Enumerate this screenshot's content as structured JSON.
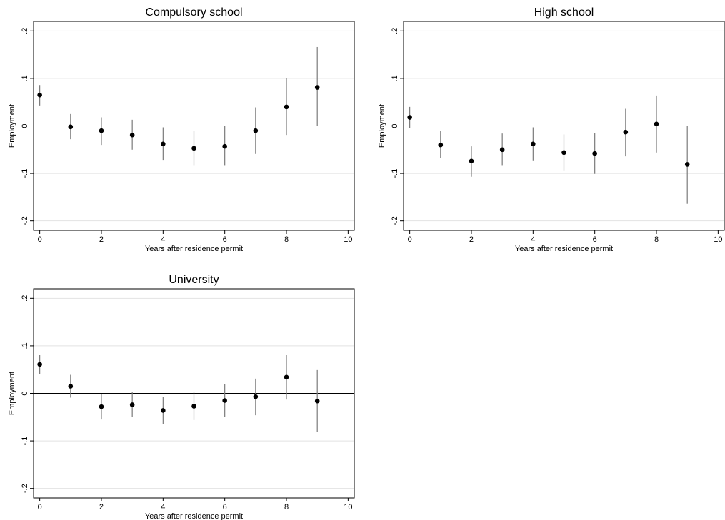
{
  "chart_data": [
    {
      "type": "errorbar",
      "title": "Compulsory school",
      "x_label": "Years after residence permit",
      "y_label": "Employment",
      "x": [
        0,
        1,
        2,
        3,
        4,
        5,
        6,
        7,
        8,
        9
      ],
      "values": [
        0.065,
        -0.002,
        -0.01,
        -0.019,
        -0.038,
        -0.047,
        -0.043,
        -0.01,
        0.04,
        0.081
      ],
      "lower": [
        0.043,
        -0.028,
        -0.04,
        -0.05,
        -0.073,
        -0.084,
        -0.084,
        -0.059,
        -0.019,
        0.0
      ],
      "upper": [
        0.086,
        0.025,
        0.018,
        0.013,
        -0.003,
        -0.01,
        0,
        0.039,
        0.101,
        0.166
      ],
      "xlim": [
        -0.2,
        10.2
      ],
      "ylim": [
        -0.22,
        0.22
      ],
      "xticks": [
        0,
        2,
        4,
        6,
        8,
        10
      ],
      "yticks": [
        {
          "value": -0.2,
          "label": "-.2"
        },
        {
          "value": -0.1,
          "label": "-.1"
        },
        0,
        {
          "value": 0.1,
          "label": ".1"
        },
        {
          "value": 0.2,
          "label": ".2"
        }
      ],
      "grid": true,
      "color": "#000000"
    },
    {
      "type": "errorbar",
      "title": "High school",
      "x_label": "Years after residence permit",
      "y_label": "Employment",
      "x": [
        0,
        1,
        2,
        3,
        4,
        5,
        6,
        7,
        8,
        9
      ],
      "values": [
        0.018,
        -0.04,
        -0.074,
        -0.05,
        -0.038,
        -0.056,
        -0.058,
        -0.013,
        0.004,
        -0.081
      ],
      "lower": [
        -0.004,
        -0.068,
        -0.107,
        -0.084,
        -0.074,
        -0.095,
        -0.101,
        -0.064,
        -0.056,
        -0.164
      ],
      "upper": [
        0.04,
        -0.01,
        -0.043,
        -0.016,
        -0.003,
        -0.018,
        -0.015,
        0.036,
        0.064,
        0.0
      ],
      "xlim": [
        -0.2,
        10.2
      ],
      "ylim": [
        -0.22,
        0.22
      ],
      "xticks": [
        0,
        2,
        4,
        6,
        8,
        10
      ],
      "yticks": [
        {
          "value": -0.2,
          "label": "-.2"
        },
        {
          "value": -0.1,
          "label": "-.1"
        },
        0,
        {
          "value": 0.1,
          "label": ".1"
        },
        {
          "value": 0.2,
          "label": ".2"
        }
      ],
      "grid": true,
      "color": "#000000"
    },
    {
      "type": "errorbar",
      "title": "University",
      "x_label": "Years after residence permit",
      "y_label": "Employment",
      "x": [
        0,
        1,
        2,
        3,
        4,
        5,
        6,
        7,
        8,
        9
      ],
      "values": [
        0.061,
        0.015,
        -0.028,
        -0.024,
        -0.036,
        -0.027,
        -0.015,
        -0.007,
        0.034,
        -0.016
      ],
      "lower": [
        0.04,
        -0.009,
        -0.055,
        -0.05,
        -0.065,
        -0.056,
        -0.049,
        -0.046,
        -0.013,
        -0.081
      ],
      "upper": [
        0.081,
        0.039,
        -0.001,
        0.003,
        -0.007,
        0.003,
        0.019,
        0.031,
        0.081,
        0.049
      ],
      "xlim": [
        -0.2,
        10.2
      ],
      "ylim": [
        -0.22,
        0.22
      ],
      "xticks": [
        0,
        2,
        4,
        6,
        8,
        10
      ],
      "yticks": [
        {
          "value": -0.2,
          "label": "-.2"
        },
        {
          "value": -0.1,
          "label": "-.1"
        },
        0,
        {
          "value": 0.1,
          "label": ".1"
        },
        {
          "value": 0.2,
          "label": ".2"
        }
      ],
      "grid": true,
      "color": "#000000"
    }
  ]
}
